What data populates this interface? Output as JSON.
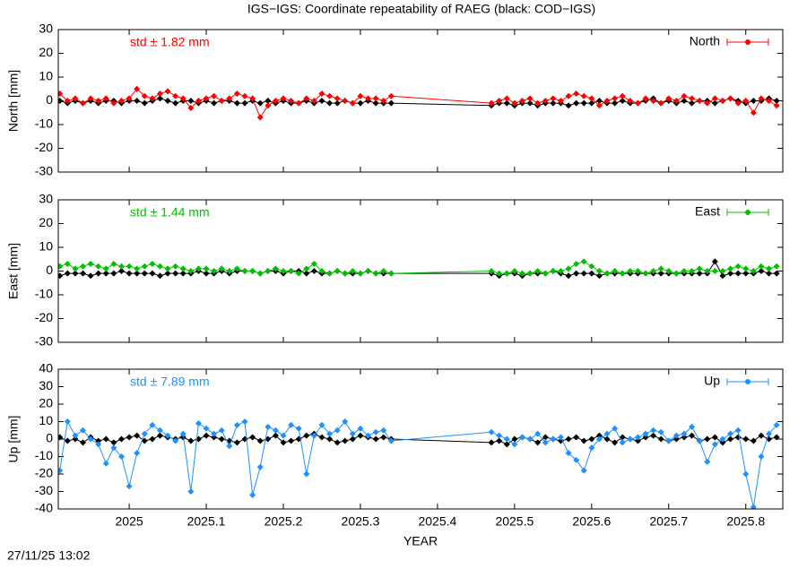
{
  "title": "IGS−IGS: Coordinate repeatability of RAEG (black: COD−IGS)",
  "timestamp": "27/11/25 13:02",
  "chart_data": [
    {
      "type": "line",
      "y_label": "North [mm]",
      "annotation": "std ± 1.82 mm",
      "annotation_color": "#ff0000",
      "legend": "top-right",
      "xlim": [
        2024.908,
        2025.848
      ],
      "xticks": [
        2025,
        2025.1,
        2025.2,
        2025.3,
        2025.4,
        2025.5,
        2025.6,
        2025.7,
        2025.8
      ],
      "ylim": [
        -30,
        30
      ],
      "yticks": [
        -30,
        -20,
        -10,
        0,
        10,
        20,
        30
      ],
      "x": [
        2024.91,
        2024.92,
        2024.93,
        2024.94,
        2024.95,
        2024.96,
        2024.97,
        2024.98,
        2024.99,
        2025,
        2025.01,
        2025.02,
        2025.03,
        2025.04,
        2025.05,
        2025.06,
        2025.07,
        2025.08,
        2025.09,
        2025.1,
        2025.11,
        2025.12,
        2025.13,
        2025.14,
        2025.15,
        2025.16,
        2025.17,
        2025.18,
        2025.19,
        2025.2,
        2025.21,
        2025.22,
        2025.23,
        2025.24,
        2025.25,
        2025.26,
        2025.27,
        2025.28,
        2025.29,
        2025.3,
        2025.31,
        2025.32,
        2025.33,
        2025.34,
        2025.47,
        2025.48,
        2025.49,
        2025.5,
        2025.51,
        2025.52,
        2025.53,
        2025.54,
        2025.55,
        2025.56,
        2025.57,
        2025.58,
        2025.59,
        2025.6,
        2025.61,
        2025.62,
        2025.63,
        2025.64,
        2025.65,
        2025.66,
        2025.67,
        2025.68,
        2025.69,
        2025.7,
        2025.71,
        2025.72,
        2025.73,
        2025.74,
        2025.75,
        2025.76,
        2025.77,
        2025.78,
        2025.79,
        2025.8,
        2025.81,
        2025.82,
        2025.83,
        2025.84
      ],
      "series": [
        {
          "color": "#000000",
          "values": [
            0,
            -1,
            0,
            -1,
            0,
            -1,
            0,
            0,
            -1,
            0,
            0,
            -1,
            0,
            1,
            0,
            -1,
            0,
            0,
            -1,
            0,
            -1,
            0,
            0,
            -1,
            -1,
            0,
            -1,
            0,
            -1,
            0,
            -1,
            -1,
            0,
            -1,
            0,
            -1,
            -1,
            0,
            -1,
            -1,
            0,
            -1,
            -1,
            -1,
            -2,
            -1,
            -1,
            -2,
            -1,
            -1,
            -2,
            -1,
            -1,
            -1,
            -2,
            -1,
            -1,
            -1,
            0,
            -1,
            -1,
            0,
            -1,
            -1,
            0,
            1,
            -1,
            0,
            -1,
            0,
            -1,
            0,
            0,
            -1,
            0,
            1,
            0,
            -1,
            0,
            0,
            1,
            0
          ]
        },
        {
          "name": "North",
          "color": "#ff0000",
          "values": [
            3,
            0,
            1,
            -1,
            1,
            0,
            1,
            -1,
            0,
            1,
            5,
            2,
            1,
            3,
            4,
            2,
            1,
            -3,
            0,
            1,
            2,
            0,
            1,
            3,
            2,
            1,
            -7,
            -2,
            0,
            1,
            0,
            -1,
            1,
            0,
            3,
            2,
            1,
            0,
            -1,
            2,
            1,
            1,
            0,
            2,
            -1,
            0,
            1,
            -1,
            0,
            1,
            -1,
            0,
            1,
            0,
            2,
            3,
            2,
            1,
            -2,
            0,
            1,
            2,
            0,
            -1,
            1,
            0,
            -1,
            1,
            0,
            2,
            1,
            0,
            -1,
            1,
            0,
            1,
            -1,
            0,
            -5,
            1,
            0,
            -2
          ]
        }
      ]
    },
    {
      "type": "line",
      "y_label": "East [mm]",
      "annotation": "std ± 1.44 mm",
      "annotation_color": "#00c000",
      "legend": "top-right",
      "xlim": [
        2024.908,
        2025.848
      ],
      "xticks": [
        2025,
        2025.1,
        2025.2,
        2025.3,
        2025.4,
        2025.5,
        2025.6,
        2025.7,
        2025.8
      ],
      "ylim": [
        -30,
        30
      ],
      "yticks": [
        -30,
        -20,
        -10,
        0,
        10,
        20,
        30
      ],
      "x": [
        2024.91,
        2024.92,
        2024.93,
        2024.94,
        2024.95,
        2024.96,
        2024.97,
        2024.98,
        2024.99,
        2025,
        2025.01,
        2025.02,
        2025.03,
        2025.04,
        2025.05,
        2025.06,
        2025.07,
        2025.08,
        2025.09,
        2025.1,
        2025.11,
        2025.12,
        2025.13,
        2025.14,
        2025.15,
        2025.16,
        2025.17,
        2025.18,
        2025.19,
        2025.2,
        2025.21,
        2025.22,
        2025.23,
        2025.24,
        2025.25,
        2025.26,
        2025.27,
        2025.28,
        2025.29,
        2025.3,
        2025.31,
        2025.32,
        2025.33,
        2025.34,
        2025.47,
        2025.48,
        2025.49,
        2025.5,
        2025.51,
        2025.52,
        2025.53,
        2025.54,
        2025.55,
        2025.56,
        2025.57,
        2025.58,
        2025.59,
        2025.6,
        2025.61,
        2025.62,
        2025.63,
        2025.64,
        2025.65,
        2025.66,
        2025.67,
        2025.68,
        2025.69,
        2025.7,
        2025.71,
        2025.72,
        2025.73,
        2025.74,
        2025.75,
        2025.76,
        2025.77,
        2025.78,
        2025.79,
        2025.8,
        2025.81,
        2025.82,
        2025.83,
        2025.84
      ],
      "series": [
        {
          "color": "#000000",
          "values": [
            -2,
            -1,
            -1,
            -1,
            -2,
            -1,
            -1,
            -1,
            0,
            -1,
            -1,
            -1,
            -1,
            -2,
            -1,
            -1,
            -1,
            -1,
            0,
            -1,
            -1,
            0,
            -1,
            0,
            0,
            0,
            -1,
            0,
            0,
            -1,
            0,
            0,
            -1,
            0,
            -1,
            -1,
            0,
            -1,
            -1,
            -1,
            0,
            -1,
            -1,
            -1,
            -1,
            -2,
            -1,
            -1,
            -2,
            -1,
            -1,
            -1,
            0,
            -1,
            -2,
            -1,
            -1,
            -1,
            -2,
            -1,
            -1,
            -1,
            -1,
            -1,
            -1,
            -1,
            -1,
            -1,
            -1,
            -1,
            -1,
            -1,
            -1,
            4,
            -2,
            -1,
            -1,
            -1,
            -1,
            0,
            -1,
            -1
          ]
        },
        {
          "name": "East",
          "color": "#00c000",
          "values": [
            2,
            3,
            1,
            2,
            3,
            2,
            1,
            3,
            2,
            2,
            1,
            2,
            3,
            2,
            1,
            2,
            1,
            0,
            1,
            1,
            0,
            1,
            0,
            1,
            0,
            0,
            -1,
            0,
            1,
            0,
            0,
            -1,
            1,
            3,
            0,
            -1,
            0,
            -1,
            0,
            -1,
            0,
            -1,
            0,
            -1,
            0,
            -1,
            -1,
            0,
            -1,
            -1,
            0,
            -1,
            0,
            0,
            1,
            3,
            4,
            2,
            0,
            -1,
            0,
            -1,
            0,
            0,
            -1,
            0,
            1,
            0,
            -1,
            0,
            0,
            1,
            0,
            0,
            0,
            1,
            2,
            1,
            0,
            2,
            1,
            2
          ]
        }
      ]
    },
    {
      "type": "line",
      "y_label": "Up [mm]",
      "x_label": "YEAR",
      "annotation": "std ± 7.89 mm",
      "annotation_color": "#1e90ff",
      "legend": "top-right",
      "xtick_labels": true,
      "xlim": [
        2024.908,
        2025.848
      ],
      "xticks": [
        2025,
        2025.1,
        2025.2,
        2025.3,
        2025.4,
        2025.5,
        2025.6,
        2025.7,
        2025.8
      ],
      "ylim": [
        -40,
        40
      ],
      "yticks": [
        -40,
        -30,
        -20,
        -10,
        0,
        10,
        20,
        30,
        40
      ],
      "x": [
        2024.91,
        2024.92,
        2024.93,
        2024.94,
        2024.95,
        2024.96,
        2024.97,
        2024.98,
        2024.99,
        2025,
        2025.01,
        2025.02,
        2025.03,
        2025.04,
        2025.05,
        2025.06,
        2025.07,
        2025.08,
        2025.09,
        2025.1,
        2025.11,
        2025.12,
        2025.13,
        2025.14,
        2025.15,
        2025.16,
        2025.17,
        2025.18,
        2025.19,
        2025.2,
        2025.21,
        2025.22,
        2025.23,
        2025.24,
        2025.25,
        2025.26,
        2025.27,
        2025.28,
        2025.29,
        2025.3,
        2025.31,
        2025.32,
        2025.33,
        2025.34,
        2025.47,
        2025.48,
        2025.49,
        2025.5,
        2025.51,
        2025.52,
        2025.53,
        2025.54,
        2025.55,
        2025.56,
        2025.57,
        2025.58,
        2025.59,
        2025.6,
        2025.61,
        2025.62,
        2025.63,
        2025.64,
        2025.65,
        2025.66,
        2025.67,
        2025.68,
        2025.69,
        2025.7,
        2025.71,
        2025.72,
        2025.73,
        2025.74,
        2025.75,
        2025.76,
        2025.77,
        2025.78,
        2025.79,
        2025.8,
        2025.81,
        2025.82,
        2025.83,
        2025.84
      ],
      "series": [
        {
          "color": "#000000",
          "values": [
            1,
            -1,
            0,
            -2,
            1,
            -1,
            0,
            -2,
            0,
            1,
            2,
            -1,
            0,
            2,
            1,
            0,
            1,
            -1,
            0,
            2,
            1,
            0,
            -1,
            -2,
            0,
            1,
            -1,
            0,
            2,
            -2,
            -1,
            0,
            2,
            3,
            1,
            0,
            -2,
            -1,
            0,
            2,
            1,
            0,
            1,
            0,
            -2,
            -1,
            -3,
            0,
            1,
            0,
            -2,
            1,
            0,
            -1,
            0,
            1,
            -1,
            0,
            2,
            0,
            -2,
            1,
            0,
            -1,
            1,
            2,
            0,
            -1,
            0,
            1,
            2,
            -1,
            0,
            1,
            -2,
            0,
            1,
            0,
            -1,
            2,
            0,
            1
          ]
        },
        {
          "name": "Up",
          "color": "#1e90ff",
          "values": [
            -18,
            10,
            2,
            5,
            0,
            -3,
            -14,
            -5,
            -10,
            -27,
            -8,
            3,
            8,
            5,
            2,
            -1,
            3,
            -30,
            9,
            6,
            3,
            5,
            -4,
            8,
            10,
            -32,
            -16,
            7,
            5,
            2,
            8,
            6,
            -20,
            2,
            8,
            3,
            5,
            10,
            3,
            6,
            2,
            4,
            5,
            -1,
            4,
            2,
            0,
            -3,
            1,
            0,
            3,
            -2,
            0,
            1,
            -8,
            -12,
            -18,
            -5,
            0,
            3,
            6,
            -2,
            0,
            1,
            3,
            5,
            4,
            -1,
            2,
            3,
            7,
            -1,
            -13,
            -3,
            0,
            3,
            5,
            -20,
            -39,
            -10,
            3,
            8
          ]
        }
      ]
    }
  ]
}
